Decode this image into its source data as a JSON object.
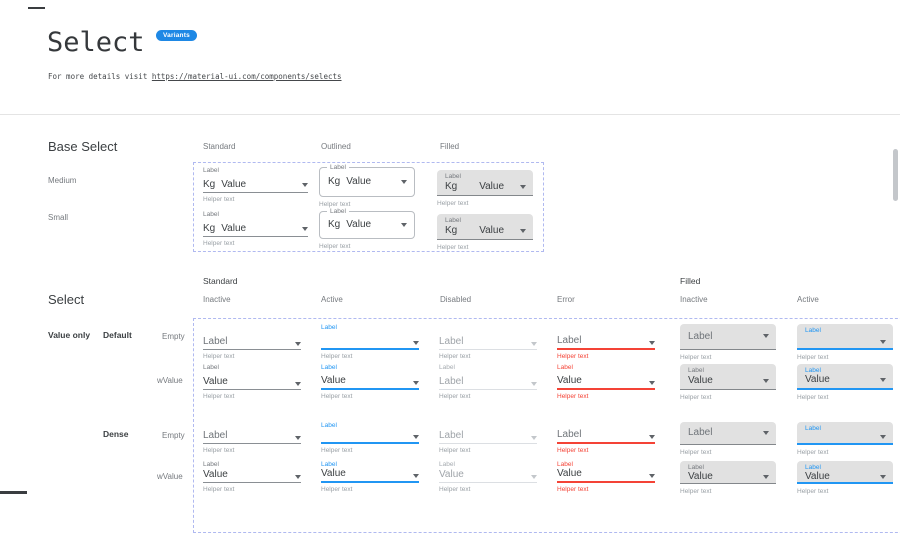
{
  "header": {
    "title": "Select",
    "badge": "Variants",
    "subtitle_prefix": "For more details visit",
    "subtitle_link": "https://material-ui.com/components/selects"
  },
  "colors": {
    "accent": "#2196F3",
    "error": "#F44336",
    "badge": "#1E88E5",
    "filled_bg": "#E1E1E1",
    "dashed_border": "#B0B9F0"
  },
  "base_select": {
    "heading": "Base Select",
    "columns": [
      "Standard",
      "Outlined",
      "Filled"
    ],
    "row_labels": [
      "Medium",
      "Small"
    ],
    "component": {
      "label": "Label",
      "adornment": "Kg",
      "value": "Value",
      "helper": "Helper text"
    }
  },
  "select_section": {
    "heading": "Select",
    "groups": [
      {
        "label": "Standard",
        "states": [
          "Inactive",
          "Active",
          "Disabled",
          "Error"
        ]
      },
      {
        "label": "Filled",
        "states": [
          "Inactive",
          "Active"
        ]
      }
    ],
    "row_groups": {
      "left": "Value only",
      "variants": [
        "Default",
        "Dense"
      ],
      "sizes": [
        "Empty",
        "wValue"
      ]
    },
    "grid_rows": [
      {
        "name": "default-empty",
        "cells": [
          {
            "variant": "standard",
            "state": "inactive",
            "shrink": null,
            "value": "Label",
            "muted": true,
            "helper": "Helper text"
          },
          {
            "variant": "standard",
            "state": "active",
            "shrink": "Label",
            "value": "",
            "muted": false,
            "helper": "Helper text"
          },
          {
            "variant": "standard",
            "state": "disabled",
            "shrink": null,
            "value": "Label",
            "muted": false,
            "helper": "Helper text"
          },
          {
            "variant": "standard",
            "state": "error",
            "shrink": null,
            "value": "Label",
            "muted": true,
            "helper": "Helper text"
          },
          {
            "variant": "filled",
            "state": "inactive",
            "shrink": null,
            "value": "Label",
            "muted": true,
            "helper": "Helper text"
          },
          {
            "variant": "filled",
            "state": "active",
            "shrink": "Label",
            "value": "",
            "muted": false,
            "helper": "Helper text"
          }
        ]
      },
      {
        "name": "default-wvalue",
        "cells": [
          {
            "variant": "standard",
            "state": "inactive",
            "shrink": "Label",
            "value": "Value",
            "muted": false,
            "helper": "Helper text"
          },
          {
            "variant": "standard",
            "state": "active",
            "shrink": "Label",
            "value": "Value",
            "muted": false,
            "helper": "Helper text"
          },
          {
            "variant": "standard",
            "state": "disabled",
            "shrink": "Label",
            "value": "Label",
            "muted": false,
            "helper": "Helper text"
          },
          {
            "variant": "standard",
            "state": "error",
            "shrink": "Label",
            "value": "Value",
            "muted": false,
            "helper": "Helper text"
          },
          {
            "variant": "filled",
            "state": "inactive",
            "shrink": "Label",
            "value": "Value",
            "muted": false,
            "helper": "Helper text"
          },
          {
            "variant": "filled",
            "state": "active",
            "shrink": "Label",
            "value": "Value",
            "muted": false,
            "helper": "Helper text"
          }
        ]
      },
      {
        "name": "dense-empty",
        "cells": [
          {
            "variant": "standard",
            "state": "inactive",
            "shrink": null,
            "value": "Label",
            "muted": true,
            "helper": "Helper text"
          },
          {
            "variant": "standard",
            "state": "active",
            "shrink": "Label",
            "value": "",
            "muted": false,
            "helper": "Helper text"
          },
          {
            "variant": "standard",
            "state": "disabled",
            "shrink": null,
            "value": "Label",
            "muted": false,
            "helper": "Helper text"
          },
          {
            "variant": "standard",
            "state": "error",
            "shrink": null,
            "value": "Label",
            "muted": true,
            "helper": "Helper text"
          },
          {
            "variant": "filled",
            "state": "inactive",
            "shrink": null,
            "value": "Label",
            "muted": true,
            "helper": "Helper text"
          },
          {
            "variant": "filled",
            "state": "active",
            "shrink": "Label",
            "value": "",
            "muted": false,
            "helper": "Helper text"
          }
        ]
      },
      {
        "name": "dense-wvalue",
        "cells": [
          {
            "variant": "standard",
            "state": "inactive",
            "shrink": "Label",
            "value": "Value",
            "muted": false,
            "helper": "Helper text"
          },
          {
            "variant": "standard",
            "state": "active",
            "shrink": "Label",
            "value": "Value",
            "muted": false,
            "helper": "Helper text"
          },
          {
            "variant": "standard",
            "state": "disabled",
            "shrink": "Label",
            "value": "Value",
            "muted": false,
            "helper": "Helper text"
          },
          {
            "variant": "standard",
            "state": "error",
            "shrink": "Label",
            "value": "Value",
            "muted": false,
            "helper": "Helper text"
          },
          {
            "variant": "filled",
            "state": "inactive",
            "shrink": "Label",
            "value": "Value",
            "muted": false,
            "helper": "Helper text"
          },
          {
            "variant": "filled",
            "state": "active",
            "shrink": "Label",
            "value": "Value",
            "muted": false,
            "helper": "Helper text"
          }
        ]
      }
    ]
  }
}
